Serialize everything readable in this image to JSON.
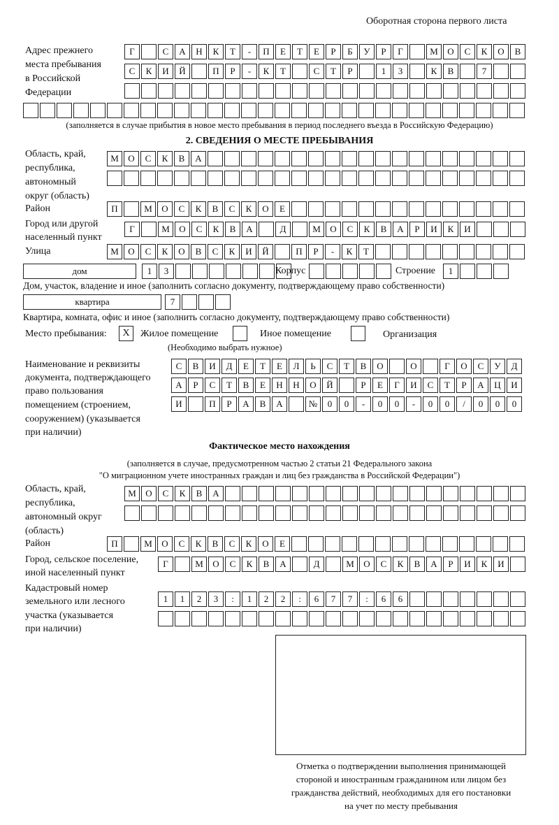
{
  "page_header": "Оборотная сторона первого листа",
  "previous_address": {
    "label": [
      "Адрес прежнего",
      "места пребывания",
      "в Российской",
      "Федерации"
    ],
    "rows": [
      "Г САНКТ-ПЕТЕРБУРГ МОСКОВ",
      "СКИЙ ПР-КТ СТР 13 КВ 7  ",
      "                        ",
      "                              "
    ],
    "note": "(заполняется в случае прибытия в новое место пребывания в период последнего въезда в Российскую Федерацию)"
  },
  "section2": {
    "title": "2. СВЕДЕНИЯ О МЕСТЕ ПРЕБЫВАНИЯ",
    "region_label": [
      "Область, край,",
      "республика,",
      "автономный",
      "округ (область)"
    ],
    "region_rows": [
      "МОСКВА                   ",
      "                         "
    ],
    "district_label": "Район",
    "district_row": "П МОСКВСКОЕ              ",
    "city_label": [
      "Город или другой",
      "населенный пункт"
    ],
    "city_row": "Г МОСКВА Д МОСКВАРИКИ   ",
    "street_label": "Улица",
    "street_row": "МОСКОВСКИЙ ПР-КТ         ",
    "house_type": "дом",
    "house_row": "13       ",
    "korpus_label": "Корпус",
    "korpus_row": "     ",
    "building_label": "Строение",
    "building_row": "1   ",
    "house_note": "Дом, участок, владение и иное (заполнить согласно документу, подтверждающему право собственности)",
    "flat_type": "квартира",
    "flat_row": "7   ",
    "flat_note": "Квартира, комната, офис и иное (заполнить согласно документу, подтверждающему право собственности)",
    "stay_label": "Место пребывания:",
    "stay_options": [
      {
        "label": "Жилое помещение",
        "mark": "X"
      },
      {
        "label": "Иное помещение",
        "mark": ""
      },
      {
        "label": "Организация",
        "mark": ""
      }
    ],
    "stay_note": "(Необходимо выбрать нужное)",
    "doc_label": [
      "Наименование и реквизиты",
      "документа, подтверждающего",
      "право пользования",
      "помещением (строением,",
      "сооружением) (указывается",
      "при наличии)"
    ],
    "doc_rows": [
      "СВИДЕТЕЛЬСТВО О ГОСУД",
      "АРСТВЕННОЙ РЕГИСТРАЦИ",
      "И ПРАВА №00-00-00/000"
    ]
  },
  "actual": {
    "title": "Фактическое место нахождения",
    "note1": "(заполняется в случае, предусмотренном частью 2 статьи 21 Федерального закона",
    "note2": "\"О миграционном учете иностранных граждан и лиц без гражданства в Российской Федерации\")",
    "region_label": [
      "Область, край,",
      "республика,",
      "автономный округ",
      "(область)"
    ],
    "region_rows": [
      "МОСКВА                  ",
      "                        "
    ],
    "district_label": "Район",
    "district_row": "П МОСКВСКОЕ              ",
    "city_label": [
      "Город, сельское поселение,",
      "иной населенный пункт"
    ],
    "city_row": "Г МОСКВА Д МОСКВАРИКИ ",
    "cadastre_label": [
      "Кадастровый номер",
      "земельного или лесного",
      "участка (указывается",
      "при наличии)"
    ],
    "cadastre_rows": [
      "1123:122:677:66       ",
      "                      "
    ]
  },
  "stamp_caption": [
    "Отметка о подтверждении выполнения принимающей",
    "стороной и иностранным гражданином или лицом без",
    "гражданства действий, необходимых для его постановки",
    "на учет по месту пребывания"
  ]
}
